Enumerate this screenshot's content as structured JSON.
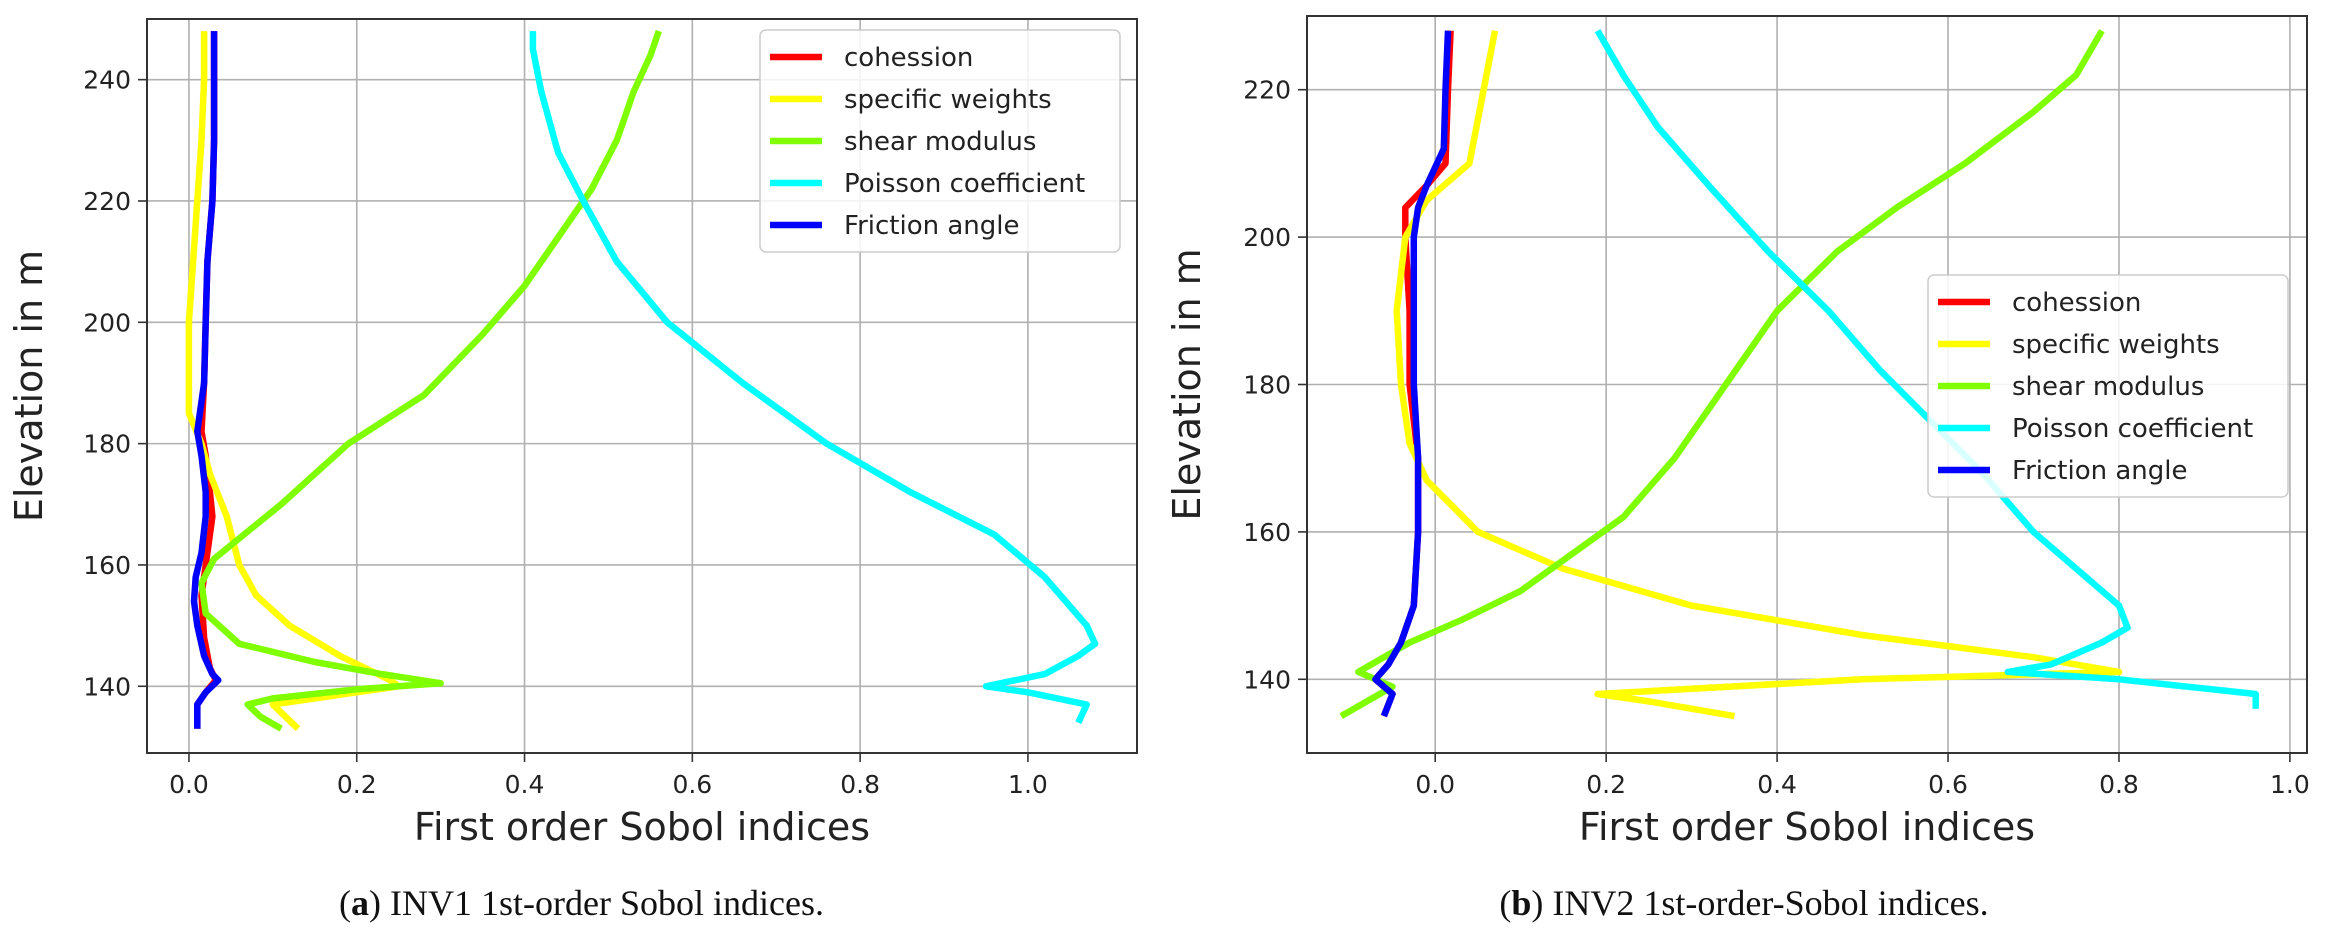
{
  "chart_data": [
    {
      "type": "line",
      "title": "",
      "xlabel": "First order Sobol indices",
      "ylabel": "Elevation in m",
      "xlim": [
        -0.05,
        1.13
      ],
      "ylim": [
        129,
        250
      ],
      "xticks": [
        0.0,
        0.2,
        0.4,
        0.6,
        0.8,
        1.0
      ],
      "xtick_labels": [
        "0.0",
        "0.2",
        "0.4",
        "0.6",
        "0.8",
        "1.0"
      ],
      "yticks": [
        140,
        160,
        180,
        200,
        220,
        240
      ],
      "ytick_labels": [
        "140",
        "160",
        "180",
        "200",
        "220",
        "240"
      ],
      "grid": true,
      "legend": {
        "position": "top-right",
        "entries": [
          "cohession",
          "specific weights",
          "shear modulus",
          "Poisson coefficient",
          "Friction angle"
        ]
      },
      "series": [
        {
          "name": "cohession",
          "color": "#ff0000",
          "points": [
            [
              0.03,
              248
            ],
            [
              0.03,
              240
            ],
            [
              0.03,
              230
            ],
            [
              0.028,
              220
            ],
            [
              0.022,
              210
            ],
            [
              0.02,
              200
            ],
            [
              0.018,
              190
            ],
            [
              0.015,
              182
            ],
            [
              0.02,
              178
            ],
            [
              0.025,
              172
            ],
            [
              0.028,
              168
            ],
            [
              0.022,
              162
            ],
            [
              0.015,
              155
            ],
            [
              0.018,
              148
            ],
            [
              0.025,
              143
            ],
            [
              0.032,
              141
            ],
            [
              0.02,
              139
            ],
            [
              0.01,
              137
            ],
            [
              0.01,
              133
            ]
          ]
        },
        {
          "name": "specific weights",
          "color": "#ffff00",
          "points": [
            [
              0.018,
              248
            ],
            [
              0.018,
              240
            ],
            [
              0.015,
              230
            ],
            [
              0.01,
              220
            ],
            [
              0.005,
              210
            ],
            [
              0.0,
              200
            ],
            [
              0.0,
              190
            ],
            [
              0.0,
              185
            ],
            [
              0.015,
              180
            ],
            [
              0.025,
              175
            ],
            [
              0.045,
              168
            ],
            [
              0.06,
              160
            ],
            [
              0.08,
              155
            ],
            [
              0.12,
              150
            ],
            [
              0.18,
              145
            ],
            [
              0.24,
              141
            ],
            [
              0.25,
              140
            ],
            [
              0.2,
              139
            ],
            [
              0.1,
              137
            ],
            [
              0.115,
              135
            ],
            [
              0.13,
              133
            ]
          ]
        },
        {
          "name": "shear modulus",
          "color": "#80ff00",
          "points": [
            [
              0.56,
              248
            ],
            [
              0.55,
              244
            ],
            [
              0.53,
              238
            ],
            [
              0.51,
              230
            ],
            [
              0.48,
              222
            ],
            [
              0.44,
              214
            ],
            [
              0.4,
              206
            ],
            [
              0.35,
              198
            ],
            [
              0.28,
              188
            ],
            [
              0.19,
              180
            ],
            [
              0.11,
              170
            ],
            [
              0.03,
              161
            ],
            [
              0.015,
              157
            ],
            [
              0.02,
              152
            ],
            [
              0.06,
              147
            ],
            [
              0.15,
              144
            ],
            [
              0.23,
              142
            ],
            [
              0.3,
              140.5
            ],
            [
              0.2,
              139.5
            ],
            [
              0.1,
              138
            ],
            [
              0.07,
              137
            ],
            [
              0.085,
              135
            ],
            [
              0.11,
              133
            ]
          ]
        },
        {
          "name": "Poisson coefficient",
          "color": "#00ffff",
          "points": [
            [
              0.41,
              248
            ],
            [
              0.41,
              245
            ],
            [
              0.42,
              238
            ],
            [
              0.44,
              228
            ],
            [
              0.47,
              220
            ],
            [
              0.51,
              210
            ],
            [
              0.57,
              200
            ],
            [
              0.66,
              190
            ],
            [
              0.76,
              180
            ],
            [
              0.86,
              172
            ],
            [
              0.96,
              165
            ],
            [
              1.02,
              158
            ],
            [
              1.07,
              150
            ],
            [
              1.08,
              147
            ],
            [
              1.06,
              145
            ],
            [
              1.02,
              142
            ],
            [
              0.95,
              140
            ],
            [
              1.0,
              139
            ],
            [
              1.07,
              137
            ],
            [
              1.06,
              134
            ]
          ]
        },
        {
          "name": "Friction angle",
          "color": "#0000ff",
          "points": [
            [
              0.03,
              248
            ],
            [
              0.03,
              240
            ],
            [
              0.03,
              230
            ],
            [
              0.028,
              220
            ],
            [
              0.022,
              210
            ],
            [
              0.02,
              200
            ],
            [
              0.018,
              190
            ],
            [
              0.01,
              182
            ],
            [
              0.015,
              178
            ],
            [
              0.02,
              172
            ],
            [
              0.02,
              168
            ],
            [
              0.015,
              162
            ],
            [
              0.008,
              158
            ],
            [
              0.006,
              154
            ],
            [
              0.01,
              150
            ],
            [
              0.018,
              145
            ],
            [
              0.028,
              142
            ],
            [
              0.035,
              141
            ],
            [
              0.02,
              139
            ],
            [
              0.01,
              137
            ],
            [
              0.01,
              133
            ]
          ]
        }
      ]
    },
    {
      "type": "line",
      "title": "",
      "xlabel": "First order Sobol indices",
      "ylabel": "Elevation in m",
      "xlim": [
        -0.15,
        1.02
      ],
      "ylim": [
        130,
        230
      ],
      "xticks": [
        -0.0,
        0.2,
        0.4,
        0.6,
        0.8,
        1.0
      ],
      "xtick_labels": [
        "0.0",
        "0.2",
        "0.4",
        "0.6",
        "0.8",
        "1.0"
      ],
      "yticks": [
        140,
        160,
        180,
        200,
        220
      ],
      "ytick_labels": [
        "140",
        "160",
        "180",
        "200",
        "220"
      ],
      "grid": true,
      "legend": {
        "position": "center-right",
        "entries": [
          "cohession",
          "specific weights",
          "shear modulus",
          "Poisson coefficient",
          "Friction angle"
        ]
      },
      "series": [
        {
          "name": "cohession",
          "color": "#ff0000",
          "points": [
            [
              0.018,
              228
            ],
            [
              0.015,
              220
            ],
            [
              0.012,
              210
            ],
            [
              -0.01,
              207
            ],
            [
              -0.035,
              204
            ],
            [
              -0.035,
              200
            ],
            [
              -0.03,
              190
            ],
            [
              -0.03,
              180
            ],
            [
              -0.02,
              170
            ],
            [
              -0.02,
              160
            ],
            [
              -0.025,
              150
            ],
            [
              -0.04,
              145
            ],
            [
              -0.055,
              142
            ],
            [
              -0.07,
              140
            ],
            [
              -0.05,
              138
            ],
            [
              -0.06,
              135
            ]
          ]
        },
        {
          "name": "specific weights",
          "color": "#ffff00",
          "points": [
            [
              0.07,
              228
            ],
            [
              0.06,
              222
            ],
            [
              0.04,
              210
            ],
            [
              -0.01,
              205
            ],
            [
              -0.035,
              200
            ],
            [
              -0.045,
              190
            ],
            [
              -0.04,
              180
            ],
            [
              -0.03,
              172
            ],
            [
              -0.01,
              167
            ],
            [
              0.05,
              160
            ],
            [
              0.15,
              155
            ],
            [
              0.3,
              150
            ],
            [
              0.5,
              146
            ],
            [
              0.7,
              143
            ],
            [
              0.8,
              141
            ],
            [
              0.5,
              140
            ],
            [
              0.19,
              138
            ],
            [
              0.25,
              137
            ],
            [
              0.35,
              135
            ]
          ]
        },
        {
          "name": "shear modulus",
          "color": "#80ff00",
          "points": [
            [
              0.78,
              228
            ],
            [
              0.75,
              222
            ],
            [
              0.7,
              217
            ],
            [
              0.62,
              210
            ],
            [
              0.54,
              204
            ],
            [
              0.47,
              198
            ],
            [
              0.4,
              190
            ],
            [
              0.34,
              180
            ],
            [
              0.28,
              170
            ],
            [
              0.22,
              162
            ],
            [
              0.16,
              157
            ],
            [
              0.1,
              152
            ],
            [
              0.03,
              148
            ],
            [
              -0.03,
              145
            ],
            [
              -0.09,
              141
            ],
            [
              -0.05,
              139
            ],
            [
              -0.08,
              137
            ],
            [
              -0.11,
              135
            ]
          ]
        },
        {
          "name": "Poisson coefficient",
          "color": "#00ffff",
          "points": [
            [
              0.19,
              228
            ],
            [
              0.22,
              222
            ],
            [
              0.26,
              215
            ],
            [
              0.32,
              207
            ],
            [
              0.39,
              198
            ],
            [
              0.46,
              190
            ],
            [
              0.52,
              182
            ],
            [
              0.58,
              175
            ],
            [
              0.64,
              168
            ],
            [
              0.7,
              160
            ],
            [
              0.76,
              154
            ],
            [
              0.8,
              150
            ],
            [
              0.81,
              147
            ],
            [
              0.78,
              145
            ],
            [
              0.72,
              142
            ],
            [
              0.67,
              141
            ],
            [
              0.8,
              140
            ],
            [
              0.96,
              138
            ],
            [
              0.96,
              136
            ]
          ]
        },
        {
          "name": "Friction angle",
          "color": "#0000ff",
          "points": [
            [
              0.015,
              228
            ],
            [
              0.012,
              220
            ],
            [
              0.01,
              212
            ],
            [
              -0.01,
              207
            ],
            [
              -0.02,
              204
            ],
            [
              -0.025,
              200
            ],
            [
              -0.025,
              190
            ],
            [
              -0.025,
              180
            ],
            [
              -0.02,
              170
            ],
            [
              -0.02,
              160
            ],
            [
              -0.025,
              150
            ],
            [
              -0.04,
              145
            ],
            [
              -0.055,
              142
            ],
            [
              -0.07,
              140
            ],
            [
              -0.05,
              138
            ],
            [
              -0.06,
              135
            ]
          ]
        }
      ]
    }
  ],
  "captions": {
    "a": {
      "label": "a",
      "text": "INV1 1st-order Sobol indices."
    },
    "b": {
      "label": "b",
      "text": "INV2 1st-order-Sobol indices."
    }
  }
}
